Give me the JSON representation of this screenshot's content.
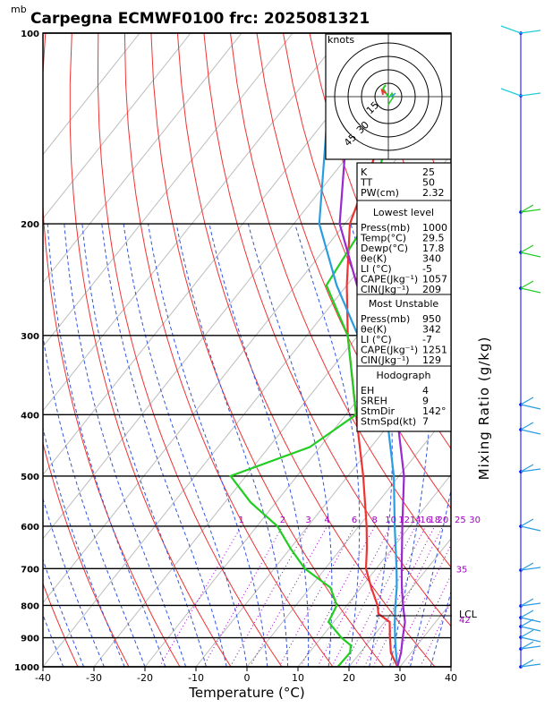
{
  "chart_data": {
    "type": "line",
    "title": "Carpegna ECMWF0100  frc: 2025081321",
    "pressure_unit_label": "mb",
    "xlabel": "Temperature (°C)",
    "right_label": "Mixing Ratio (g/kg)",
    "x_ticks": [
      "-40",
      "-30",
      "-20",
      "-10",
      "0",
      "10",
      "20",
      "30",
      "40"
    ],
    "xlim": [
      -40,
      40
    ],
    "pressure_levels": [
      "100",
      "200",
      "300",
      "400",
      "500",
      "600",
      "700",
      "800",
      "900",
      "1000"
    ],
    "pressure_range": [
      100,
      1000
    ],
    "mixing_ratio_labels": [
      "1",
      "2",
      "3",
      "4",
      "6",
      "8",
      "10",
      "12",
      "14",
      "16",
      "18",
      "20",
      "25",
      "30",
      "35"
    ],
    "lcl_label": "LCL",
    "lcl_marker_label": "42",
    "series": [
      {
        "color": "#ee3333",
        "points": [
          [
            1000,
            29.5
          ],
          [
            950,
            26
          ],
          [
            900,
            23.5
          ],
          [
            850,
            21
          ],
          [
            825,
            17.5
          ],
          [
            800,
            16
          ],
          [
            750,
            12
          ],
          [
            700,
            8
          ],
          [
            650,
            5
          ],
          [
            600,
            1.5
          ],
          [
            500,
            -7
          ],
          [
            400,
            -18
          ],
          [
            300,
            -32
          ],
          [
            250,
            -40
          ],
          [
            200,
            -49
          ],
          [
            100,
            -65
          ]
        ]
      },
      {
        "color": "#22cc22",
        "points": [
          [
            1000,
            17.8
          ],
          [
            950,
            18
          ],
          [
            925,
            17
          ],
          [
            900,
            14
          ],
          [
            850,
            9
          ],
          [
            800,
            8
          ],
          [
            750,
            4
          ],
          [
            700,
            -4
          ],
          [
            650,
            -10
          ],
          [
            600,
            -16
          ],
          [
            550,
            -25
          ],
          [
            500,
            -33
          ],
          [
            450,
            -22
          ],
          [
            400,
            -18
          ],
          [
            300,
            -32
          ],
          [
            250,
            -44
          ],
          [
            200,
            -46
          ],
          [
            100,
            -66
          ]
        ]
      },
      {
        "color": "#2a9de0",
        "points": [
          [
            1000,
            29.5
          ],
          [
            950,
            27
          ],
          [
            900,
            24.5
          ],
          [
            850,
            22
          ],
          [
            800,
            19.5
          ],
          [
            750,
            17
          ],
          [
            700,
            14
          ],
          [
            600,
            7
          ],
          [
            500,
            -1
          ],
          [
            400,
            -12
          ],
          [
            300,
            -30
          ],
          [
            250,
            -42
          ],
          [
            200,
            -55
          ],
          [
            100,
            -82
          ]
        ]
      },
      {
        "color": "#9a2ad0",
        "points": [
          [
            1000,
            29.5
          ],
          [
            950,
            28
          ],
          [
            900,
            26
          ],
          [
            850,
            24
          ],
          [
            800,
            21
          ],
          [
            750,
            18
          ],
          [
            700,
            15
          ],
          [
            600,
            8.5
          ],
          [
            500,
            1
          ],
          [
            400,
            -10
          ],
          [
            300,
            -26
          ],
          [
            250,
            -38
          ],
          [
            200,
            -51
          ],
          [
            100,
            -78
          ]
        ]
      }
    ],
    "hodograph": {
      "units": "knots",
      "ring_labels": [
        "15",
        "30",
        "45"
      ]
    },
    "indices_table": {
      "rows": [
        [
          "K",
          "25"
        ],
        [
          "TT",
          "50"
        ],
        [
          "PW(cm)",
          "2.32"
        ]
      ],
      "lowest_level": {
        "header": "Lowest level",
        "rows": [
          [
            "Press(mb)",
            "1000"
          ],
          [
            "Temp(°C)",
            "29.5"
          ],
          [
            "Dewp(°C)",
            "17.8"
          ],
          [
            "θe(K)",
            "340"
          ],
          [
            "LI (°C)",
            "-5"
          ],
          [
            "CAPE(Jkg⁻¹)",
            "1057"
          ],
          [
            "CIN(Jkg⁻¹)",
            "209"
          ]
        ]
      },
      "most_unstable": {
        "header": "Most Unstable",
        "rows": [
          [
            "Press(mb)",
            "950"
          ],
          [
            "θe(K)",
            "342"
          ],
          [
            "LI (°C)",
            "-7"
          ],
          [
            "CAPE(Jkg⁻¹)",
            "1251"
          ],
          [
            "CIN(Jkg⁻¹)",
            "129"
          ]
        ]
      },
      "hodograph_block": {
        "header": "Hodograph",
        "rows": [
          [
            "EH",
            "4"
          ],
          [
            "SREH",
            "9"
          ],
          [
            "StmDir",
            "142°"
          ],
          [
            "StmSpd(kt)",
            "7"
          ]
        ]
      }
    }
  }
}
